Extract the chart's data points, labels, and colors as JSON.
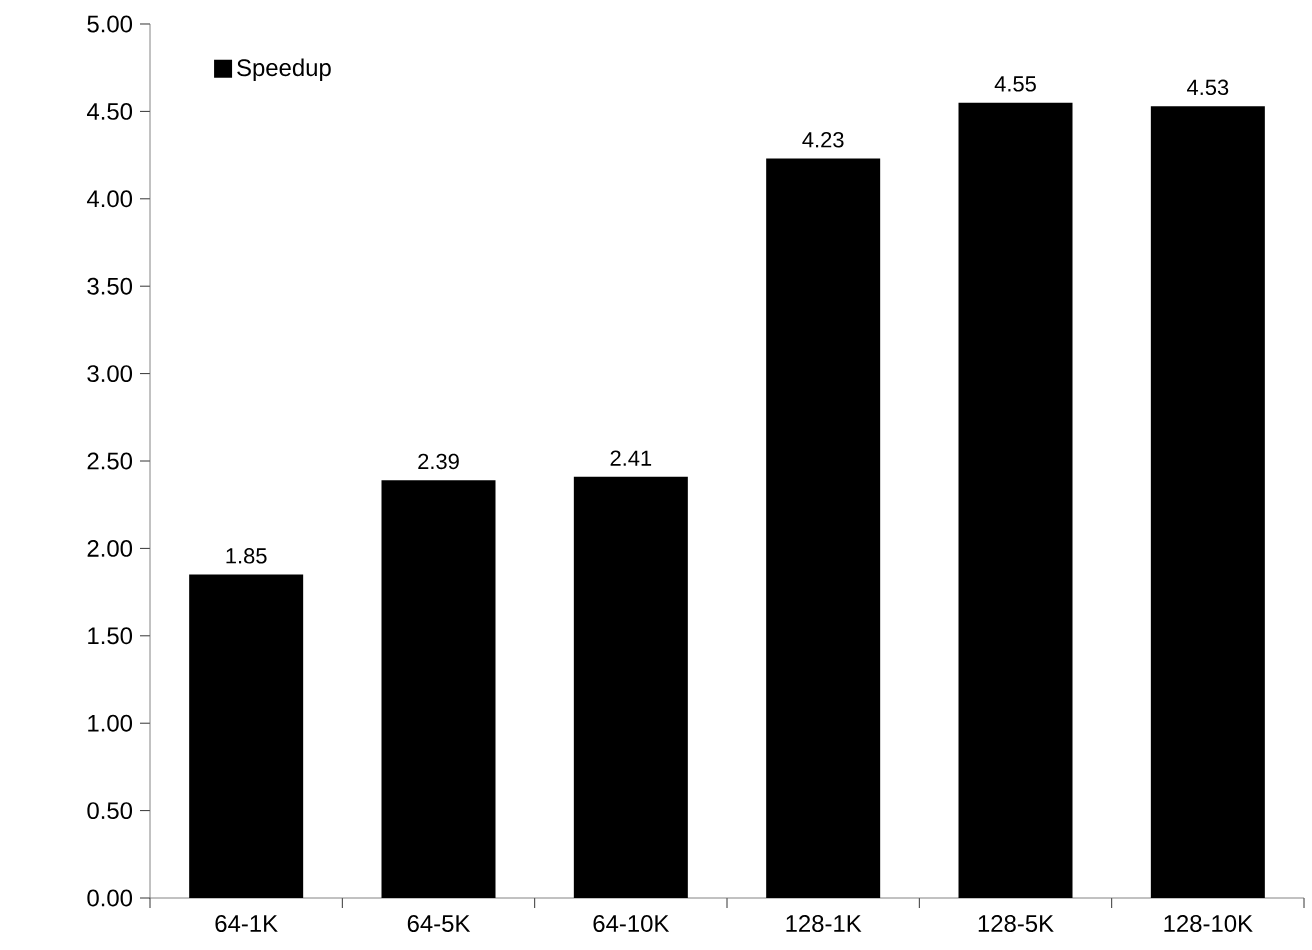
{
  "chart_data": {
    "type": "bar",
    "categories": [
      "64-1K",
      "64-5K",
      "64-10K",
      "128-1K",
      "128-5K",
      "128-10K"
    ],
    "series": [
      {
        "name": "Speedup",
        "color": "#000000",
        "values": [
          1.85,
          2.39,
          2.41,
          4.23,
          4.55,
          4.53
        ]
      }
    ],
    "ylim": [
      0,
      5
    ],
    "yticks": [
      {
        "value": 0,
        "label": "0.00"
      },
      {
        "value": 0.5,
        "label": "0.50"
      },
      {
        "value": 1,
        "label": "1.00"
      },
      {
        "value": 1.5,
        "label": "1.50"
      },
      {
        "value": 2,
        "label": "2.00"
      },
      {
        "value": 2.5,
        "label": "2.50"
      },
      {
        "value": 3,
        "label": "3.00"
      },
      {
        "value": 3.5,
        "label": "3.50"
      },
      {
        "value": 4,
        "label": "4.00"
      },
      {
        "value": 4.5,
        "label": "4.50"
      },
      {
        "value": 5,
        "label": "5.00"
      }
    ],
    "data_labels": true,
    "legend": "top left"
  }
}
